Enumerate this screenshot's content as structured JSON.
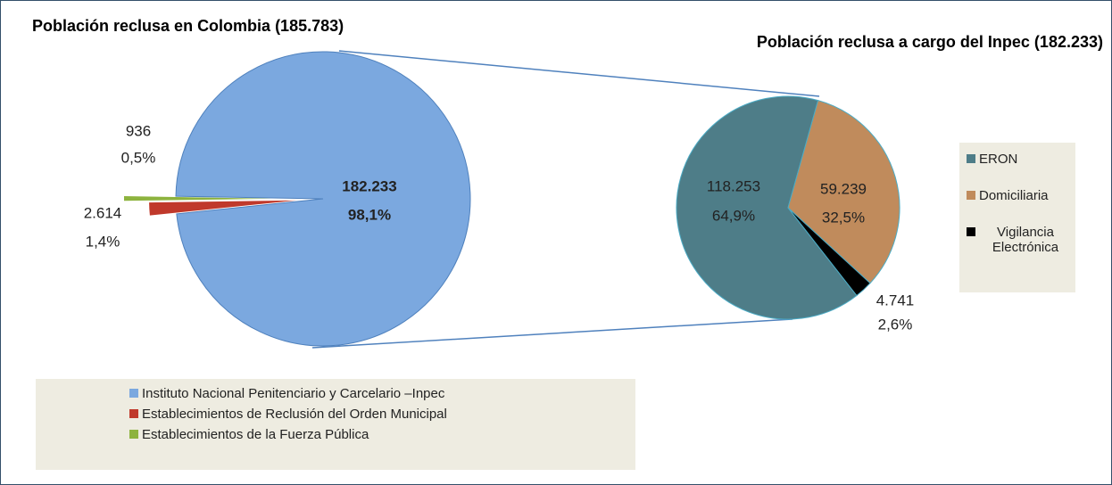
{
  "chart_data": [
    {
      "type": "pie",
      "title": "Población reclusa en Colombia (185.783)",
      "categories": [
        "Instituto Nacional Penitenciario y Carcelario –Inpec",
        "Establecimientos de Reclusión del Orden Municipal",
        "Establecimientos de la Fuerza Pública"
      ],
      "values": [
        182233,
        2614,
        936
      ],
      "value_labels": [
        "182.233",
        "2.614",
        "936"
      ],
      "percent_labels": [
        "98,1%",
        "1,4%",
        "0,5%"
      ],
      "colors": [
        "#7ba8df",
        "#c0392b",
        "#8db33e"
      ]
    },
    {
      "type": "pie",
      "title": "Población reclusa a cargo del Inpec (182.233)",
      "categories": [
        "ERON",
        "Domiciliaria",
        "Vigilancia Electrónica"
      ],
      "values": [
        118253,
        59239,
        4741
      ],
      "value_labels": [
        "118.253",
        "59.239",
        "4.741"
      ],
      "percent_labels": [
        "64,9%",
        "32,5%",
        "2,6%"
      ],
      "colors": [
        "#4e7d88",
        "#c08b5c",
        "#000000"
      ]
    }
  ]
}
